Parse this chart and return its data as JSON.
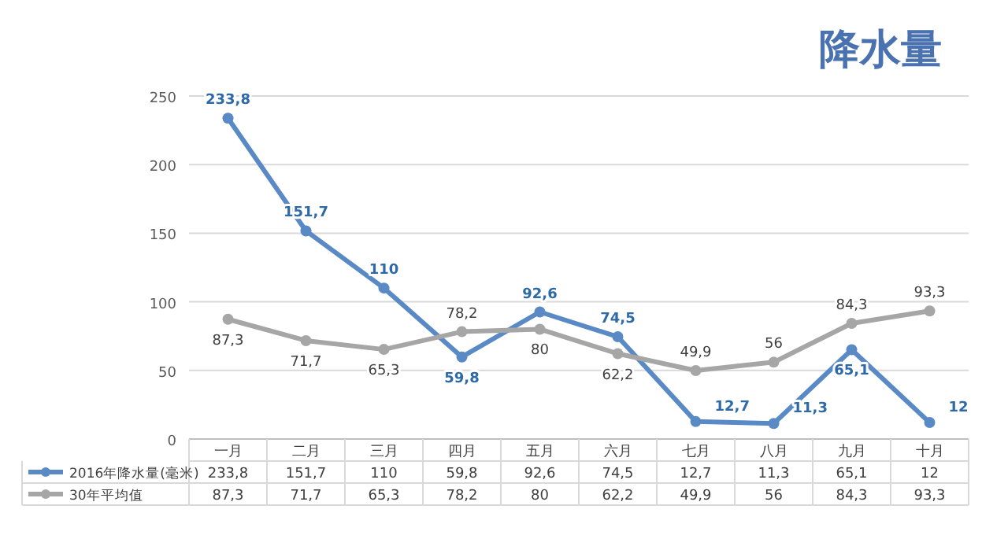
{
  "chart_data": {
    "type": "line",
    "title": "降水量",
    "categories": [
      "一月",
      "二月",
      "三月",
      "四月",
      "五月",
      "六月",
      "七月",
      "八月",
      "九月",
      "十月"
    ],
    "series": [
      {
        "name": "2016年降水量(毫米)",
        "color": "#5a8ac6",
        "values": [
          233.8,
          151.7,
          110,
          59.8,
          92.6,
          74.5,
          12.7,
          11.3,
          65.1,
          12
        ],
        "value_labels": [
          "233,8",
          "151,7",
          "110",
          "59,8",
          "92,6",
          "74,5",
          "12,7",
          "11,3",
          "65,1",
          "12"
        ]
      },
      {
        "name": "30年平均值",
        "color": "#a6a6a6",
        "values": [
          87.3,
          71.7,
          65.3,
          78.2,
          80,
          62.2,
          49.9,
          56,
          84.3,
          93.3
        ],
        "value_labels": [
          "87,3",
          "71,7",
          "65,3",
          "78,2",
          "80",
          "62,2",
          "49,9",
          "56",
          "84,3",
          "93,3"
        ]
      }
    ],
    "ylim": [
      0,
      250
    ],
    "yticks": [
      0,
      50,
      100,
      150,
      200,
      250
    ],
    "grid": "y",
    "legend": "bottom",
    "marker": "circle",
    "line_style": "solid"
  }
}
